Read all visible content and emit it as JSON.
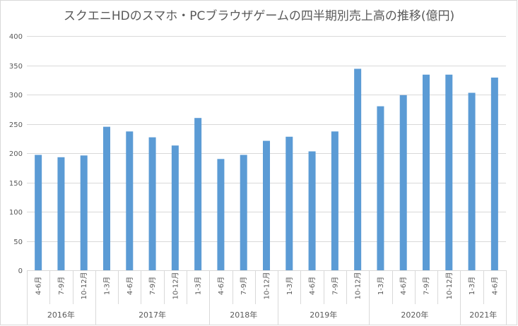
{
  "chart_data": {
    "type": "bar",
    "title": "スクエニHDのスマホ・PCブラウザゲームの四半期別売上高の推移(億円)",
    "xlabel": "",
    "ylabel": "",
    "ylim": [
      0,
      400
    ],
    "yticks": [
      0,
      50,
      100,
      150,
      200,
      250,
      300,
      350,
      400
    ],
    "grid": true,
    "legend": "none",
    "bar_color": "#5b9bd5",
    "categories": [
      "4-6月",
      "7-9月",
      "10-12月",
      "1-3月",
      "4-6月",
      "7-9月",
      "10-12月",
      "1-3月",
      "4-6月",
      "7-9月",
      "10-12月",
      "1-3月",
      "4-6月",
      "7-9月",
      "10-12月",
      "1-3月",
      "4-6月",
      "7-9月",
      "10-12月",
      "1-3月",
      "4-6月"
    ],
    "values": [
      197,
      193,
      196,
      245,
      237,
      227,
      213,
      260,
      190,
      197,
      221,
      228,
      203,
      237,
      344,
      280,
      299,
      334,
      334,
      303,
      329
    ],
    "year_groups": [
      {
        "label": "2016年",
        "count": 3
      },
      {
        "label": "2017年",
        "count": 5
      },
      {
        "label": "2018年",
        "count": 3
      },
      {
        "label": "2019年",
        "count": 4
      },
      {
        "label": "2020年",
        "count": 4
      },
      {
        "label": "2021年",
        "count": 2
      }
    ]
  }
}
